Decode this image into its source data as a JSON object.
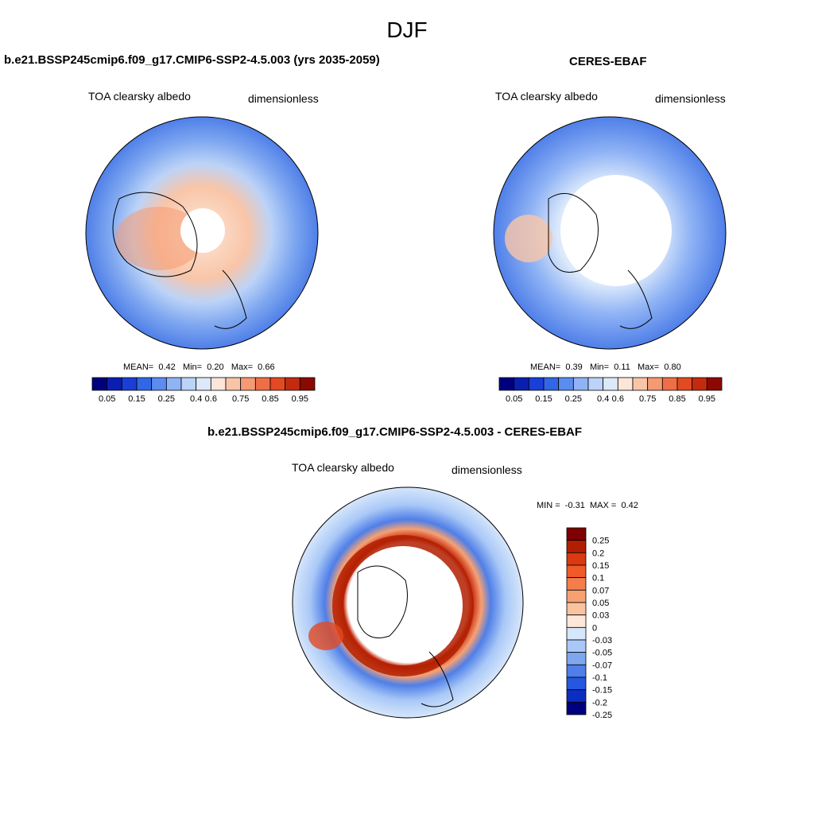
{
  "season": "DJF",
  "panels": [
    {
      "title": "b.e21.BSSP245cmip6.f09_g17.CMIP6-SSP2-4.5.003 (yrs 2035-2059)",
      "left_label": "TOA clearsky albedo",
      "right_label": "dimensionless",
      "stats": {
        "mean_label": "MEAN=",
        "mean": "0.42",
        "min_label": "Min=",
        "min": "0.20",
        "max_label": "Max=",
        "max": "0.66"
      }
    },
    {
      "title": "CERES-EBAF",
      "left_label": "TOA clearsky albedo",
      "right_label": "dimensionless",
      "stats": {
        "mean_label": "MEAN=",
        "mean": "0.39",
        "min_label": "Min=",
        "min": "0.11",
        "max_label": "Max=",
        "max": "0.80"
      }
    }
  ],
  "diff_panel": {
    "title": "b.e21.BSSP245cmip6.f09_g17.CMIP6-SSP2-4.5.003 - CERES-EBAF",
    "left_label": "TOA clearsky albedo",
    "right_label": "dimensionless",
    "stats": {
      "min_label": "MIN =",
      "min": "-0.31",
      "max_label": "MAX =",
      "max": "0.42"
    }
  },
  "colorbar_abs": {
    "labels": [
      "0.05",
      "0.15",
      "0.25",
      "0.4",
      "0.6",
      "0.75",
      "0.85",
      "0.95"
    ],
    "colors": [
      "#00007f",
      "#0a1fb0",
      "#1a3fd6",
      "#3366e6",
      "#5b8cf0",
      "#8fb3f5",
      "#bcd3f7",
      "#dce9fb",
      "#fce6d8",
      "#f9c5a8",
      "#f59a73",
      "#ef6e45",
      "#e24a22",
      "#c42a10",
      "#8a0a00"
    ]
  },
  "colorbar_diff": {
    "labels": [
      "0.25",
      "0.2",
      "0.15",
      "0.1",
      "0.07",
      "0.05",
      "0.03",
      "0",
      "-0.03",
      "-0.05",
      "-0.07",
      "-0.1",
      "-0.15",
      "-0.2",
      "-0.25"
    ],
    "colors": [
      "#7f0000",
      "#b21e00",
      "#d93a10",
      "#f05a28",
      "#f47d4a",
      "#f7a173",
      "#fac3a0",
      "#fde7d8",
      "#d6e6fb",
      "#a9c8f7",
      "#7ea7f0",
      "#4f7fe8",
      "#2657df",
      "#0c2ec0",
      "#00007f"
    ]
  }
}
